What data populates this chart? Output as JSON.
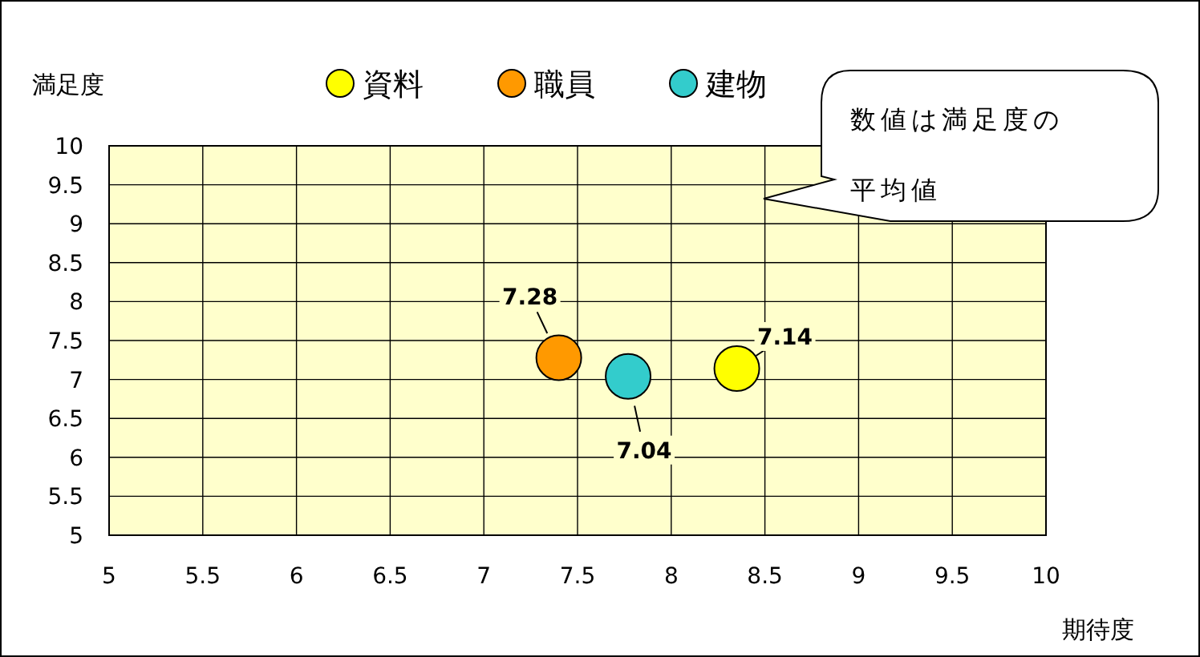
{
  "chart_data": {
    "type": "scatter",
    "ylabel": "満足度",
    "xlabel": "期待度",
    "xlim": [
      5,
      10
    ],
    "xticks": [
      5,
      5.5,
      6,
      6.5,
      7,
      7.5,
      8,
      8.5,
      9,
      9.5,
      10
    ],
    "ylim": [
      5,
      10
    ],
    "yticks": [
      5,
      5.5,
      6,
      6.5,
      7,
      7.5,
      8,
      8.5,
      9,
      9.5,
      10
    ],
    "grid": true,
    "legend": "top",
    "marker": "circle",
    "series": [
      {
        "name": "資料",
        "color": "#ffff00",
        "x": [
          8.35
        ],
        "values": [
          7.14
        ],
        "value_labels": [
          "7.14"
        ]
      },
      {
        "name": "職員",
        "color": "#ff9900",
        "x": [
          7.4
        ],
        "values": [
          7.28
        ],
        "value_labels": [
          "7.28"
        ]
      },
      {
        "name": "建物",
        "color": "#33cccc",
        "x": [
          7.77
        ],
        "values": [
          7.04
        ],
        "value_labels": [
          "7.04"
        ]
      }
    ],
    "annotations": [
      "数値は満足度の平均値"
    ]
  }
}
